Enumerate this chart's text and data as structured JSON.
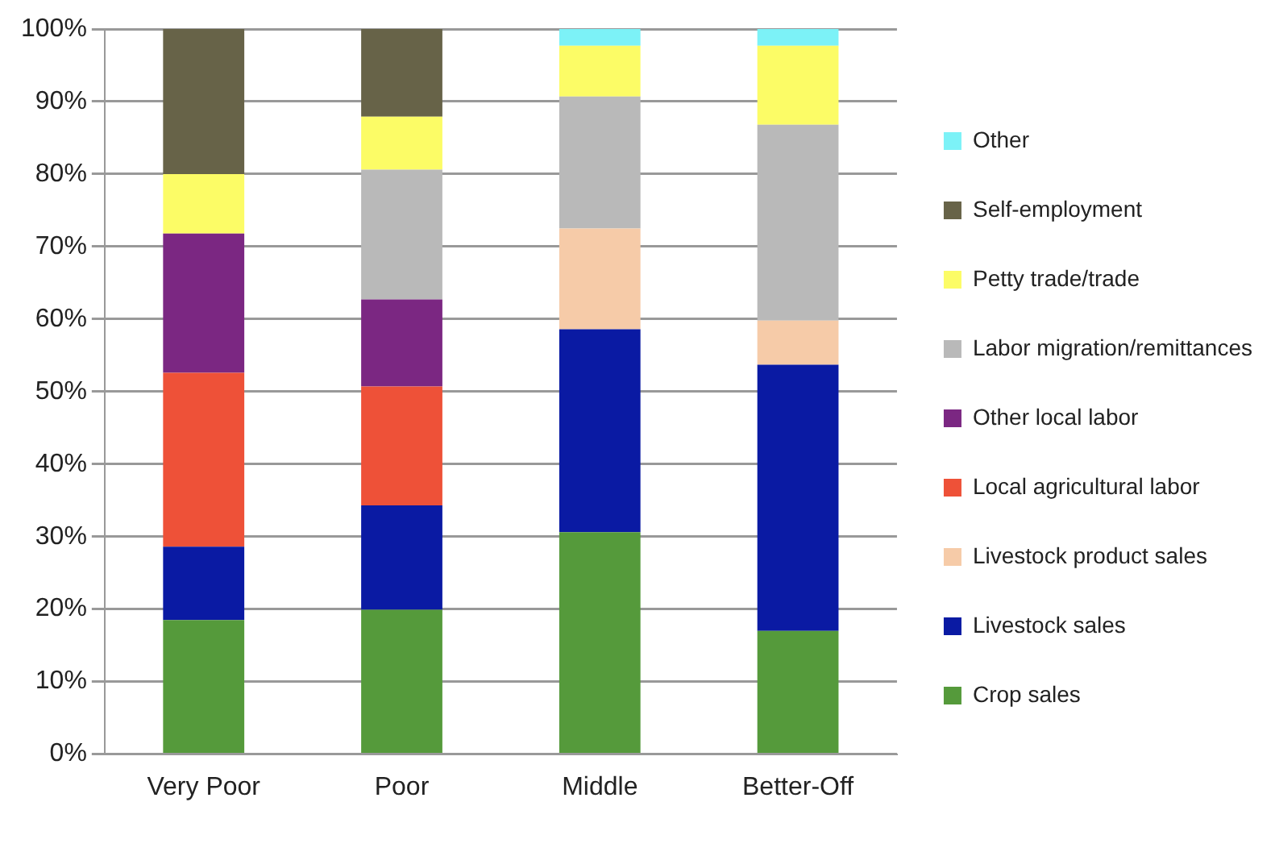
{
  "chart_data": {
    "type": "bar",
    "stacked": true,
    "categories": [
      "Very Poor",
      "Poor",
      "Middle",
      "Better-Off"
    ],
    "series": [
      {
        "name": "Crop sales",
        "color": "#559a3b",
        "values": [
          18.5,
          19.9,
          30.6,
          17.0
        ]
      },
      {
        "name": "Livestock sales",
        "color": "#0a1aa3",
        "values": [
          10.1,
          14.4,
          28.0,
          36.7
        ]
      },
      {
        "name": "Livestock product sales",
        "color": "#f6cba8",
        "values": [
          0,
          0,
          13.9,
          6.1
        ]
      },
      {
        "name": "Local agricultural labor",
        "color": "#ee5138",
        "values": [
          24.0,
          16.4,
          0,
          0
        ]
      },
      {
        "name": "Other local labor",
        "color": "#7b2782",
        "values": [
          19.2,
          12.0,
          0,
          0
        ]
      },
      {
        "name": "Labor migration/remittances",
        "color": "#b9b9b9",
        "values": [
          0,
          17.9,
          18.2,
          27.0
        ]
      },
      {
        "name": "Petty trade/trade",
        "color": "#fcfc66",
        "values": [
          8.2,
          7.3,
          7.0,
          10.9
        ]
      },
      {
        "name": "Self-employment",
        "color": "#676348",
        "values": [
          20.0,
          12.1,
          0,
          0
        ]
      },
      {
        "name": "Other",
        "color": "#7cf2f7",
        "values": [
          0,
          0,
          2.3,
          2.3
        ]
      }
    ],
    "ylim": [
      0,
      100
    ],
    "yticks": [
      {
        "value": 0,
        "label": "0%"
      },
      {
        "value": 10,
        "label": "10%"
      },
      {
        "value": 20,
        "label": "20%"
      },
      {
        "value": 30,
        "label": "30%"
      },
      {
        "value": 40,
        "label": "40%"
      },
      {
        "value": 50,
        "label": "50%"
      },
      {
        "value": 60,
        "label": "60%"
      },
      {
        "value": 70,
        "label": "70%"
      },
      {
        "value": 80,
        "label": "80%"
      },
      {
        "value": 90,
        "label": "90%"
      },
      {
        "value": 100,
        "label": "100%"
      }
    ],
    "grid": "y",
    "legend": "right"
  }
}
